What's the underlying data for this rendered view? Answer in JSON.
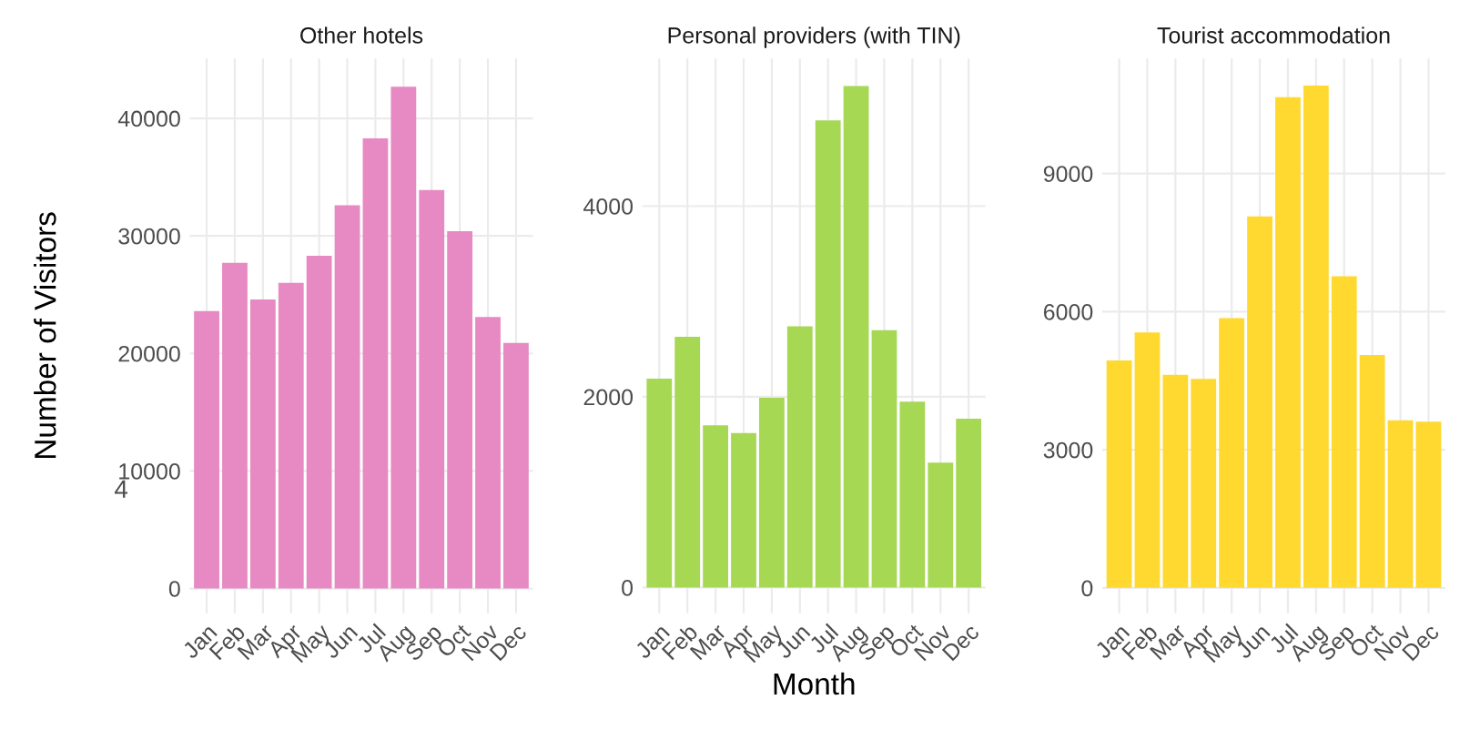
{
  "chart_data": [
    {
      "type": "bar",
      "title": "Other hotels",
      "ylabel": "Number of Visitors",
      "annotations": [
        "4"
      ],
      "categories": [
        "Jan",
        "Feb",
        "Mar",
        "Apr",
        "May",
        "Jun",
        "Jul",
        "Aug",
        "Sep",
        "Oct",
        "Nov",
        "Dec"
      ],
      "values": [
        23600,
        27700,
        24600,
        26000,
        28300,
        32600,
        38300,
        42700,
        33900,
        30400,
        23100,
        20900
      ],
      "color": "#e78ac3",
      "ylim": [
        -2100,
        45100
      ],
      "yticks": [
        0,
        10000,
        20000,
        30000,
        40000
      ],
      "grid": true
    },
    {
      "type": "bar",
      "title": "Personal providers (with TIN)",
      "xlabel": "Month",
      "categories": [
        "Jan",
        "Feb",
        "Mar",
        "Apr",
        "May",
        "Jun",
        "Jul",
        "Aug",
        "Sep",
        "Oct",
        "Nov",
        "Dec"
      ],
      "values": [
        2190,
        2630,
        1700,
        1620,
        1990,
        2740,
        4900,
        5260,
        2700,
        1950,
        1310,
        1770
      ],
      "color": "#a6d854",
      "ylim": [
        -270,
        5550
      ],
      "yticks": [
        0,
        2000,
        4000
      ],
      "grid": true
    },
    {
      "type": "bar",
      "title": "Tourist accommodation",
      "categories": [
        "Jan",
        "Feb",
        "Mar",
        "Apr",
        "May",
        "Jun",
        "Jul",
        "Aug",
        "Sep",
        "Oct",
        "Nov",
        "Dec"
      ],
      "values": [
        4940,
        5550,
        4630,
        4540,
        5860,
        8070,
        10660,
        10910,
        6770,
        5060,
        3640,
        3610
      ],
      "color": "#ffd92f",
      "ylim": [
        -550,
        11500
      ],
      "yticks": [
        0,
        3000,
        6000,
        9000
      ],
      "grid": true
    }
  ]
}
